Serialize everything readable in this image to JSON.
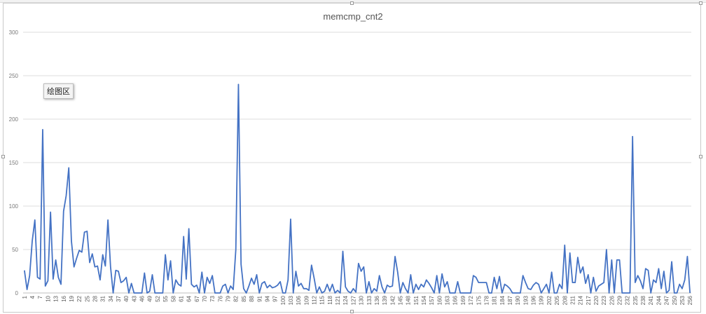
{
  "chart_data": {
    "type": "line",
    "title": "memcmp_cnt2",
    "xlabel": "",
    "ylabel": "",
    "ylim": [
      0,
      300
    ],
    "yticks": [
      0,
      50,
      100,
      150,
      200,
      250,
      300
    ],
    "grid": true,
    "legend": "none",
    "x_start": 1,
    "x_label_step": 3,
    "series": [
      {
        "color": "#4472c4",
        "values": [
          26,
          4,
          20,
          60,
          84,
          18,
          16,
          188,
          8,
          14,
          93,
          16,
          38,
          18,
          10,
          94,
          112,
          144,
          60,
          30,
          40,
          49,
          47,
          70,
          71,
          35,
          45,
          30,
          31,
          15,
          44,
          31,
          84,
          30,
          0,
          26,
          25,
          12,
          14,
          18,
          0,
          11,
          0,
          0,
          0,
          0,
          23,
          0,
          2,
          21,
          0,
          0,
          0,
          0,
          44,
          15,
          37,
          0,
          15,
          10,
          8,
          65,
          16,
          74,
          10,
          7,
          9,
          0,
          24,
          0,
          18,
          11,
          20,
          0,
          0,
          0,
          8,
          10,
          0,
          8,
          4,
          50,
          240,
          33,
          5,
          0,
          8,
          17,
          10,
          21,
          0,
          11,
          13,
          6,
          9,
          6,
          7,
          9,
          13,
          0,
          0,
          15,
          85,
          0,
          25,
          8,
          11,
          5,
          5,
          3,
          32,
          17,
          0,
          7,
          0,
          2,
          10,
          2,
          10,
          0,
          3,
          0,
          48,
          7,
          2,
          0,
          5,
          1,
          34,
          25,
          30,
          0,
          13,
          0,
          5,
          2,
          20,
          7,
          0,
          9,
          7,
          8,
          42,
          24,
          0,
          12,
          5,
          0,
          21,
          0,
          10,
          4,
          10,
          7,
          15,
          11,
          6,
          0,
          20,
          0,
          22,
          7,
          13,
          0,
          0,
          0,
          13,
          0,
          0,
          0,
          0,
          0,
          20,
          18,
          12,
          12,
          12,
          12,
          0,
          0,
          18,
          5,
          19,
          0,
          10,
          8,
          5,
          0,
          0,
          0,
          0,
          20,
          12,
          5,
          4,
          9,
          12,
          10,
          0,
          5,
          10,
          0,
          24,
          0,
          0,
          10,
          5,
          55,
          0,
          46,
          12,
          12,
          41,
          23,
          30,
          11,
          21,
          0,
          18,
          2,
          8,
          10,
          12,
          50,
          0,
          38,
          0,
          38,
          38,
          0,
          0,
          0,
          0,
          180,
          12,
          20,
          14,
          5,
          28,
          26,
          0,
          15,
          12,
          28,
          5,
          25,
          0,
          3,
          36,
          0,
          0,
          10,
          5,
          15,
          42,
          0
        ]
      }
    ]
  }
}
